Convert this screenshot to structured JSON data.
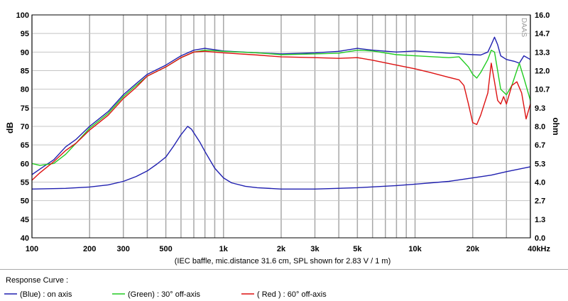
{
  "chart_data": {
    "type": "line",
    "title": "",
    "caption": "(IEC baffle, mic.distance 31.6 cm, SPL shown for 2.83 V / 1 m)",
    "watermark": "DAAS",
    "ylabel_left": "dB",
    "ylabel_right": "ohm",
    "x_scale": "log",
    "xlim": [
      100,
      40000
    ],
    "ylim_left": [
      40,
      100
    ],
    "ylim_right": [
      0.0,
      16.0
    ],
    "grid": true,
    "x_ticks": [
      {
        "value": 100,
        "label": "100"
      },
      {
        "value": 200,
        "label": "200"
      },
      {
        "value": 300,
        "label": "300"
      },
      {
        "value": 500,
        "label": "500"
      },
      {
        "value": 1000,
        "label": "1k"
      },
      {
        "value": 2000,
        "label": "2k"
      },
      {
        "value": 3000,
        "label": "3k"
      },
      {
        "value": 5000,
        "label": "5k"
      },
      {
        "value": 10000,
        "label": "10k"
      },
      {
        "value": 20000,
        "label": "20k"
      },
      {
        "value": 40000,
        "label": "40kHz"
      }
    ],
    "y_ticks_left": [
      "40",
      "45",
      "50",
      "55",
      "60",
      "65",
      "70",
      "75",
      "80",
      "85",
      "90",
      "95",
      "100"
    ],
    "y_ticks_right": [
      "0.0",
      "1.3",
      "2.7",
      "4.0",
      "5.3",
      "6.7",
      "8.0",
      "9.3",
      "10.7",
      "12.0",
      "13.3",
      "14.7",
      "16.0"
    ],
    "legend_title": "Response Curve :",
    "legend": [
      {
        "label": "(Blue)  : on axis",
        "color": "#2020b0"
      },
      {
        "label": "(Green) : 30° off-axis",
        "color": "#22cc22"
      },
      {
        "label": "( Red ) : 60° off-axis",
        "color": "#dd1111"
      }
    ],
    "series": [
      {
        "name": "on axis",
        "color": "#2020b0",
        "axis": "left",
        "points": [
          [
            100,
            57
          ],
          [
            110,
            58.5
          ],
          [
            130,
            61
          ],
          [
            150,
            64.5
          ],
          [
            170,
            66.5
          ],
          [
            200,
            70
          ],
          [
            250,
            74
          ],
          [
            300,
            78.5
          ],
          [
            350,
            81.5
          ],
          [
            400,
            84
          ],
          [
            500,
            86.5
          ],
          [
            600,
            89
          ],
          [
            700,
            90.5
          ],
          [
            800,
            91
          ],
          [
            1000,
            90.3
          ],
          [
            1500,
            89.8
          ],
          [
            2000,
            89.5
          ],
          [
            3000,
            89.8
          ],
          [
            4000,
            90.2
          ],
          [
            5000,
            91
          ],
          [
            6000,
            90.5
          ],
          [
            8000,
            90
          ],
          [
            10000,
            90.3
          ],
          [
            15000,
            89.7
          ],
          [
            20000,
            89.3
          ],
          [
            22000,
            89.2
          ],
          [
            24000,
            90
          ],
          [
            25000,
            92
          ],
          [
            26000,
            94
          ],
          [
            27000,
            92
          ],
          [
            28000,
            89
          ],
          [
            30000,
            88
          ],
          [
            33000,
            87.5
          ],
          [
            35000,
            87
          ],
          [
            37000,
            89
          ],
          [
            40000,
            88
          ]
        ]
      },
      {
        "name": "30° off-axis",
        "color": "#22cc22",
        "axis": "left",
        "points": [
          [
            100,
            60
          ],
          [
            110,
            59.5
          ],
          [
            130,
            60
          ],
          [
            150,
            62.5
          ],
          [
            170,
            65.5
          ],
          [
            200,
            69.5
          ],
          [
            250,
            73.5
          ],
          [
            300,
            78
          ],
          [
            350,
            81
          ],
          [
            400,
            83.5
          ],
          [
            500,
            86
          ],
          [
            600,
            88.5
          ],
          [
            700,
            90
          ],
          [
            800,
            90.5
          ],
          [
            1000,
            90.2
          ],
          [
            1500,
            89.8
          ],
          [
            2000,
            89.3
          ],
          [
            3000,
            89.5
          ],
          [
            4000,
            89.7
          ],
          [
            5000,
            90.5
          ],
          [
            6000,
            90.3
          ],
          [
            8000,
            89.3
          ],
          [
            10000,
            89
          ],
          [
            15000,
            88.5
          ],
          [
            17000,
            88.7
          ],
          [
            19000,
            86
          ],
          [
            20000,
            84
          ],
          [
            21000,
            83
          ],
          [
            22000,
            84.5
          ],
          [
            24000,
            88
          ],
          [
            25000,
            90.5
          ],
          [
            26000,
            90
          ],
          [
            27000,
            85
          ],
          [
            28000,
            80
          ],
          [
            30000,
            78.5
          ],
          [
            32000,
            81
          ],
          [
            35000,
            87
          ],
          [
            37000,
            83
          ],
          [
            40000,
            77
          ]
        ]
      },
      {
        "name": "60° off-axis",
        "color": "#dd1111",
        "axis": "left",
        "points": [
          [
            100,
            55.5
          ],
          [
            110,
            57.5
          ],
          [
            130,
            60.5
          ],
          [
            150,
            63.5
          ],
          [
            170,
            65.5
          ],
          [
            200,
            69
          ],
          [
            250,
            73
          ],
          [
            300,
            77.5
          ],
          [
            350,
            80.5
          ],
          [
            400,
            83.5
          ],
          [
            500,
            86
          ],
          [
            600,
            88.5
          ],
          [
            700,
            90
          ],
          [
            800,
            90.2
          ],
          [
            1000,
            89.8
          ],
          [
            1500,
            89.2
          ],
          [
            2000,
            88.7
          ],
          [
            3000,
            88.5
          ],
          [
            4000,
            88.3
          ],
          [
            5000,
            88.5
          ],
          [
            6000,
            87.8
          ],
          [
            8000,
            86.5
          ],
          [
            10000,
            85.5
          ],
          [
            12000,
            84.5
          ],
          [
            15000,
            83.2
          ],
          [
            17000,
            82.5
          ],
          [
            18000,
            81
          ],
          [
            19000,
            76
          ],
          [
            20000,
            71
          ],
          [
            21000,
            70.5
          ],
          [
            22000,
            73
          ],
          [
            24000,
            79
          ],
          [
            25000,
            87
          ],
          [
            26000,
            82
          ],
          [
            27000,
            77
          ],
          [
            28000,
            76
          ],
          [
            29000,
            78
          ],
          [
            30000,
            76
          ],
          [
            32000,
            81
          ],
          [
            34000,
            82
          ],
          [
            36000,
            79
          ],
          [
            38000,
            72
          ],
          [
            40000,
            76
          ]
        ]
      },
      {
        "name": "impedance",
        "color": "#2020b0",
        "axis": "right",
        "points": [
          [
            100,
            3.5
          ],
          [
            150,
            3.55
          ],
          [
            200,
            3.65
          ],
          [
            250,
            3.8
          ],
          [
            300,
            4.05
          ],
          [
            350,
            4.4
          ],
          [
            400,
            4.8
          ],
          [
            450,
            5.3
          ],
          [
            500,
            5.8
          ],
          [
            550,
            6.6
          ],
          [
            600,
            7.4
          ],
          [
            650,
            8.0
          ],
          [
            680,
            7.8
          ],
          [
            750,
            6.9
          ],
          [
            800,
            6.2
          ],
          [
            900,
            5.0
          ],
          [
            1000,
            4.3
          ],
          [
            1100,
            3.95
          ],
          [
            1300,
            3.7
          ],
          [
            1500,
            3.6
          ],
          [
            2000,
            3.5
          ],
          [
            3000,
            3.5
          ],
          [
            5000,
            3.6
          ],
          [
            8000,
            3.75
          ],
          [
            10000,
            3.85
          ],
          [
            15000,
            4.05
          ],
          [
            20000,
            4.3
          ],
          [
            25000,
            4.5
          ],
          [
            30000,
            4.75
          ],
          [
            40000,
            5.1
          ]
        ]
      }
    ]
  }
}
